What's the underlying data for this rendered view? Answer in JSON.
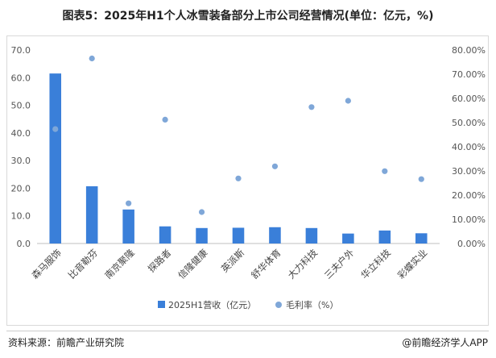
{
  "title": "图表5：2025年H1个人冰雪装备部分上市公司经营情况(单位：亿元，%)",
  "source": "资料来源：前瞻产业研究院",
  "brand": "@前瞻经济学人APP",
  "chart_data": {
    "type": "bar",
    "categories": [
      "森马服饰",
      "比音勒芬",
      "南京聚隆",
      "探路者",
      "信隆健康",
      "英派斯",
      "舒华体育",
      "大力科技",
      "三夫户外",
      "华立科技",
      "彩蝶实业"
    ],
    "series": [
      {
        "name": "2025H1营收（亿元）",
        "type": "bar",
        "axis": "left",
        "color": "#3a7fd9",
        "values": [
          61.5,
          20.7,
          12.3,
          6.2,
          5.6,
          5.7,
          5.9,
          5.6,
          3.6,
          4.7,
          3.7
        ]
      },
      {
        "name": "毛利率（%）",
        "type": "scatter",
        "axis": "right",
        "color": "#7fa7d8",
        "values": [
          47.3,
          76.5,
          16.6,
          51.2,
          13.0,
          26.9,
          31.9,
          56.4,
          59.0,
          29.9,
          26.6
        ]
      }
    ],
    "y_left": {
      "min": 0,
      "max": 70,
      "ticks": [
        "0.0",
        "10.0",
        "20.0",
        "30.0",
        "40.0",
        "50.0",
        "60.0",
        "70.0"
      ]
    },
    "y_right": {
      "min": 0,
      "max": 80,
      "ticks": [
        "0.00%",
        "10.00%",
        "20.00%",
        "30.00%",
        "40.00%",
        "50.00%",
        "60.00%",
        "70.00%",
        "80.00%"
      ]
    },
    "legend": {
      "position": "bottom"
    },
    "grid": false
  }
}
